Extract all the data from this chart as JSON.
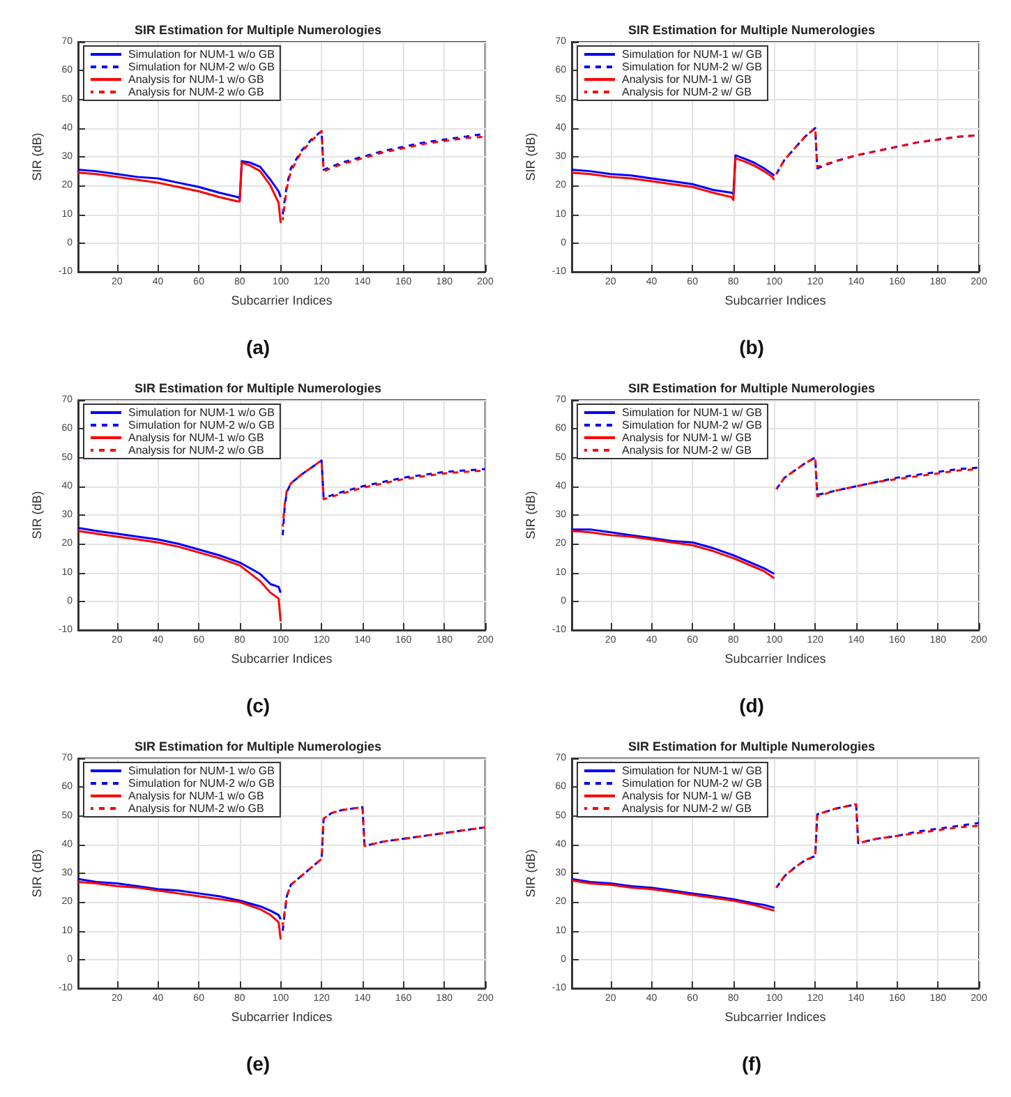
{
  "chart_data": [
    {
      "type": "line",
      "title": "SIR Estimation for Multiple Numerologies",
      "xlabel": "Subcarrier Indices",
      "ylabel": "SIR (dB)",
      "annotations": [
        "(a)"
      ],
      "xlim": [
        1,
        200
      ],
      "xticks": [
        20,
        40,
        60,
        80,
        100,
        120,
        140,
        160,
        180,
        200
      ],
      "ylim": [
        -10,
        70
      ],
      "yticks": [
        -10,
        0,
        10,
        20,
        30,
        40,
        50,
        60,
        70
      ],
      "grid": true,
      "legend": "top left",
      "marker": "none",
      "series": [
        {
          "name": "Simulation for NUM-1 w/o GB",
          "color": "#0000ff",
          "line_style": "solid",
          "x": [
            1,
            10,
            20,
            30,
            40,
            50,
            60,
            70,
            79,
            80,
            81,
            85,
            90,
            95,
            99,
            100
          ],
          "values": [
            25.5,
            25,
            24,
            23,
            22.5,
            21,
            19.5,
            17.5,
            16,
            15.5,
            28.5,
            28,
            26.5,
            22,
            18,
            16
          ]
        },
        {
          "name": "Simulation for NUM-2 w/o GB",
          "color": "#0000ff",
          "line_style": "dashed",
          "x": [
            101,
            103,
            105,
            110,
            115,
            120,
            121,
            130,
            140,
            150,
            160,
            170,
            180,
            190,
            200
          ],
          "values": [
            10,
            20,
            26,
            32,
            36,
            39,
            25.5,
            28,
            30,
            32,
            33.5,
            35,
            36,
            37,
            38
          ]
        },
        {
          "name": "Analysis for NUM-1 w/o GB",
          "color": "#ff0000",
          "line_style": "solid",
          "x": [
            1,
            10,
            20,
            30,
            40,
            50,
            60,
            70,
            79,
            80,
            81,
            85,
            90,
            95,
            99,
            100
          ],
          "values": [
            24.5,
            24,
            23,
            22,
            21,
            19.5,
            18,
            16,
            14.5,
            14.5,
            28,
            27,
            25,
            20,
            14,
            7
          ]
        },
        {
          "name": "Analysis for NUM-2 w/o GB",
          "color": "#ff0000",
          "line_style": "dashed",
          "x": [
            101,
            103,
            105,
            110,
            115,
            120,
            121,
            130,
            140,
            150,
            160,
            170,
            180,
            190,
            200
          ],
          "values": [
            8,
            19,
            25,
            31.5,
            35.5,
            39,
            25,
            27.5,
            29.5,
            31.5,
            33,
            34.5,
            35.5,
            36.5,
            37
          ]
        }
      ]
    },
    {
      "type": "line",
      "title": "SIR Estimation for Multiple Numerologies",
      "xlabel": "Subcarrier Indices",
      "ylabel": "SIR (dB)",
      "annotations": [
        "(b)"
      ],
      "xlim": [
        1,
        200
      ],
      "xticks": [
        20,
        40,
        60,
        80,
        100,
        120,
        140,
        160,
        180,
        200
      ],
      "ylim": [
        -10,
        70
      ],
      "yticks": [
        -10,
        0,
        10,
        20,
        30,
        40,
        50,
        60,
        70
      ],
      "grid": true,
      "legend": "top left",
      "marker": "none",
      "series": [
        {
          "name": "Simulation for NUM-1 w/ GB",
          "color": "#0000ff",
          "line_style": "solid",
          "x": [
            1,
            10,
            20,
            30,
            40,
            50,
            60,
            70,
            79,
            80,
            81,
            85,
            90,
            95,
            99,
            100
          ],
          "values": [
            25.5,
            25,
            24,
            23.5,
            22.5,
            21.5,
            20.5,
            18.5,
            17.5,
            17,
            30.5,
            29.5,
            28,
            26,
            24,
            23.5
          ]
        },
        {
          "name": "Simulation for NUM-2 w/ GB",
          "color": "#0000ff",
          "line_style": "dashed",
          "x": [
            101,
            105,
            110,
            115,
            120,
            121,
            130,
            140,
            150,
            160,
            170,
            180,
            190,
            200
          ],
          "values": [
            24,
            29,
            33,
            37,
            40,
            26,
            28.5,
            30.5,
            32,
            33.5,
            35,
            36,
            37,
            37.5
          ]
        },
        {
          "name": "Analysis for NUM-1 w/ GB",
          "color": "#ff0000",
          "line_style": "solid",
          "x": [
            1,
            10,
            20,
            30,
            40,
            50,
            60,
            70,
            79,
            80,
            81,
            85,
            90,
            95,
            99,
            100
          ],
          "values": [
            24.5,
            24,
            23,
            22.5,
            21.5,
            20.5,
            19.5,
            17.5,
            16,
            15,
            29.5,
            28.5,
            27,
            25,
            23,
            22
          ]
        },
        {
          "name": "Analysis for NUM-2 w/ GB",
          "color": "#ff0000",
          "line_style": "dashed",
          "x": [
            101,
            105,
            110,
            115,
            120,
            121,
            130,
            140,
            150,
            160,
            170,
            180,
            190,
            200
          ],
          "values": [
            24,
            29,
            33,
            37,
            40,
            26.5,
            28.5,
            30.5,
            32,
            33.5,
            35,
            36,
            37,
            37.5
          ]
        }
      ]
    },
    {
      "type": "line",
      "title": "SIR Estimation for Multiple Numerologies",
      "xlabel": "Subcarrier Indices",
      "ylabel": "SIR (dB)",
      "annotations": [
        "(c)"
      ],
      "xlim": [
        1,
        200
      ],
      "xticks": [
        20,
        40,
        60,
        80,
        100,
        120,
        140,
        160,
        180,
        200
      ],
      "ylim": [
        -10,
        70
      ],
      "yticks": [
        -10,
        0,
        10,
        20,
        30,
        40,
        50,
        60,
        70
      ],
      "grid": true,
      "legend": "top left",
      "marker": "none",
      "series": [
        {
          "name": "Simulation for NUM-1 w/o GB",
          "color": "#0000ff",
          "line_style": "solid",
          "x": [
            1,
            10,
            20,
            30,
            40,
            50,
            60,
            70,
            80,
            90,
            95,
            99,
            100
          ],
          "values": [
            25.5,
            24.5,
            23.5,
            22.5,
            21.5,
            20,
            18,
            16,
            13.5,
            9.5,
            6,
            5,
            3
          ]
        },
        {
          "name": "Simulation for NUM-2 w/o GB",
          "color": "#0000ff",
          "line_style": "dashed",
          "x": [
            101,
            102,
            103,
            105,
            110,
            115,
            120,
            121,
            130,
            140,
            150,
            160,
            170,
            180,
            190,
            200
          ],
          "values": [
            23,
            33,
            38,
            41,
            44,
            46.5,
            49,
            36,
            38,
            40,
            41.5,
            43,
            44,
            45,
            45.5,
            46
          ]
        },
        {
          "name": "Analysis for NUM-1 w/o GB",
          "color": "#ff0000",
          "line_style": "solid",
          "x": [
            1,
            10,
            20,
            30,
            40,
            50,
            60,
            70,
            80,
            90,
            95,
            99,
            100
          ],
          "values": [
            24.5,
            23.5,
            22.5,
            21.5,
            20.5,
            19,
            17,
            15,
            12.5,
            7,
            3,
            1,
            -7
          ]
        },
        {
          "name": "Analysis for NUM-2 w/o GB",
          "color": "#ff0000",
          "line_style": "dashed",
          "x": [
            101,
            102,
            103,
            105,
            110,
            115,
            120,
            121,
            130,
            140,
            150,
            160,
            170,
            180,
            190,
            200
          ],
          "values": [
            26,
            34,
            38.5,
            41,
            44,
            46.5,
            49,
            35.5,
            37.5,
            39.5,
            41,
            42.5,
            43.5,
            44.5,
            45,
            45.5
          ]
        }
      ]
    },
    {
      "type": "line",
      "title": "SIR Estimation for Multiple Numerologies",
      "xlabel": "Subcarrier Indices",
      "ylabel": "SIR (dB)",
      "annotations": [
        "(d)"
      ],
      "xlim": [
        1,
        200
      ],
      "xticks": [
        20,
        40,
        60,
        80,
        100,
        120,
        140,
        160,
        180,
        200
      ],
      "ylim": [
        -10,
        70
      ],
      "yticks": [
        -10,
        0,
        10,
        20,
        30,
        40,
        50,
        60,
        70
      ],
      "grid": true,
      "legend": "top left",
      "marker": "none",
      "series": [
        {
          "name": "Simulation for NUM-1 w/ GB",
          "color": "#0000ff",
          "line_style": "solid",
          "x": [
            1,
            10,
            20,
            30,
            40,
            50,
            60,
            70,
            80,
            90,
            95,
            100
          ],
          "values": [
            25,
            25,
            24,
            23,
            22,
            21,
            20.5,
            18.5,
            16,
            13,
            11.5,
            9.5
          ]
        },
        {
          "name": "Simulation for NUM-2 w/ GB",
          "color": "#0000ff",
          "line_style": "dashed",
          "x": [
            101,
            105,
            110,
            115,
            120,
            121,
            130,
            140,
            150,
            160,
            170,
            180,
            190,
            200
          ],
          "values": [
            39,
            43,
            45.5,
            48,
            50,
            37,
            38.5,
            40,
            41.5,
            43,
            44,
            45,
            46,
            46.5
          ]
        },
        {
          "name": "Analysis for NUM-1 w/ GB",
          "color": "#ff0000",
          "line_style": "solid",
          "x": [
            1,
            10,
            20,
            30,
            40,
            50,
            60,
            70,
            80,
            90,
            95,
            100
          ],
          "values": [
            24.5,
            24,
            23,
            22.5,
            21.5,
            20.5,
            19.5,
            17.5,
            15,
            12,
            10.5,
            8
          ]
        },
        {
          "name": "Analysis for NUM-2 w/ GB",
          "color": "#ff0000",
          "line_style": "dashed",
          "x": [
            101,
            105,
            110,
            115,
            120,
            121,
            130,
            140,
            150,
            160,
            170,
            180,
            190,
            200
          ],
          "values": [
            39,
            43,
            45.5,
            48,
            50,
            36.5,
            38.5,
            40,
            41.5,
            42.5,
            43.5,
            44.5,
            45.5,
            46
          ]
        }
      ]
    },
    {
      "type": "line",
      "title": "SIR Estimation for Multiple Numerologies",
      "xlabel": "Subcarrier Indices",
      "ylabel": "SIR (dB)",
      "annotations": [
        "(e)"
      ],
      "xlim": [
        1,
        200
      ],
      "xticks": [
        20,
        40,
        60,
        80,
        100,
        120,
        140,
        160,
        180,
        200
      ],
      "ylim": [
        -10,
        70
      ],
      "yticks": [
        -10,
        0,
        10,
        20,
        30,
        40,
        50,
        60,
        70
      ],
      "grid": true,
      "legend": "top left",
      "marker": "none",
      "series": [
        {
          "name": "Simulation for NUM-1 w/o GB",
          "color": "#0000ff",
          "line_style": "solid",
          "x": [
            1,
            10,
            20,
            30,
            40,
            50,
            60,
            70,
            80,
            90,
            95,
            99,
            100
          ],
          "values": [
            28,
            27,
            26.5,
            25.5,
            24.5,
            24,
            23,
            22,
            20.5,
            18.5,
            17,
            15.5,
            14
          ]
        },
        {
          "name": "Simulation for NUM-2 w/o GB",
          "color": "#0000ff",
          "line_style": "dashed",
          "x": [
            101,
            103,
            105,
            110,
            115,
            120,
            121,
            125,
            130,
            140,
            141,
            150,
            160,
            170,
            180,
            190,
            200
          ],
          "values": [
            10,
            22,
            26,
            29,
            32,
            35,
            49,
            51,
            52,
            53,
            39.5,
            41,
            42,
            43,
            44,
            45,
            46
          ]
        },
        {
          "name": "Analysis for NUM-1 w/o GB",
          "color": "#ff0000",
          "line_style": "solid",
          "x": [
            1,
            10,
            20,
            30,
            40,
            50,
            60,
            70,
            80,
            90,
            95,
            99,
            100
          ],
          "values": [
            27,
            26.5,
            25.5,
            25,
            24,
            23,
            22,
            21,
            20,
            17.5,
            15.5,
            13,
            7
          ]
        },
        {
          "name": "Analysis for NUM-2 w/o GB",
          "color": "#ff0000",
          "line_style": "dashed",
          "x": [
            101,
            103,
            105,
            110,
            115,
            120,
            121,
            125,
            130,
            140,
            141,
            150,
            160,
            170,
            180,
            190,
            200
          ],
          "values": [
            12,
            22,
            26,
            29,
            32,
            35,
            49,
            51,
            52,
            53,
            39.5,
            41,
            42,
            43,
            44,
            45,
            46
          ]
        }
      ]
    },
    {
      "type": "line",
      "title": "SIR Estimation for Multiple Numerologies",
      "xlabel": "Subcarrier Indices",
      "ylabel": "SIR (dB)",
      "annotations": [
        "(f)"
      ],
      "xlim": [
        1,
        200
      ],
      "xticks": [
        20,
        40,
        60,
        80,
        100,
        120,
        140,
        160,
        180,
        200
      ],
      "ylim": [
        -10,
        70
      ],
      "yticks": [
        -10,
        0,
        10,
        20,
        30,
        40,
        50,
        60,
        70
      ],
      "grid": true,
      "legend": "top left",
      "marker": "none",
      "series": [
        {
          "name": "Simulation for NUM-1 w/ GB",
          "color": "#0000ff",
          "line_style": "solid",
          "x": [
            1,
            10,
            20,
            30,
            40,
            50,
            60,
            70,
            80,
            90,
            95,
            100
          ],
          "values": [
            28,
            27,
            26.5,
            25.5,
            25,
            24,
            23,
            22,
            21,
            19.5,
            19,
            18
          ]
        },
        {
          "name": "Simulation for NUM-2 w/ GB",
          "color": "#0000ff",
          "line_style": "dashed",
          "x": [
            101,
            105,
            110,
            115,
            120,
            121,
            130,
            140,
            141,
            150,
            160,
            170,
            180,
            190,
            200
          ],
          "values": [
            25,
            29,
            32,
            34.5,
            36,
            50.5,
            52.5,
            54,
            40.5,
            42,
            43,
            44.5,
            45.5,
            46.5,
            47.5
          ]
        },
        {
          "name": "Analysis for NUM-1 w/ GB",
          "color": "#ff0000",
          "line_style": "solid",
          "x": [
            1,
            10,
            20,
            30,
            40,
            50,
            60,
            70,
            80,
            90,
            95,
            100
          ],
          "values": [
            27.5,
            26.5,
            26,
            25,
            24.5,
            23.5,
            22.5,
            21.5,
            20.5,
            19,
            18,
            17
          ]
        },
        {
          "name": "Analysis for NUM-2 w/ GB",
          "color": "#ff0000",
          "line_style": "dashed",
          "x": [
            101,
            105,
            110,
            115,
            120,
            121,
            130,
            140,
            141,
            150,
            160,
            170,
            180,
            190,
            200
          ],
          "values": [
            25,
            29,
            32,
            34.5,
            36,
            50.5,
            52.5,
            54,
            40.5,
            42,
            43,
            44,
            45,
            46,
            46.5
          ]
        }
      ]
    }
  ]
}
